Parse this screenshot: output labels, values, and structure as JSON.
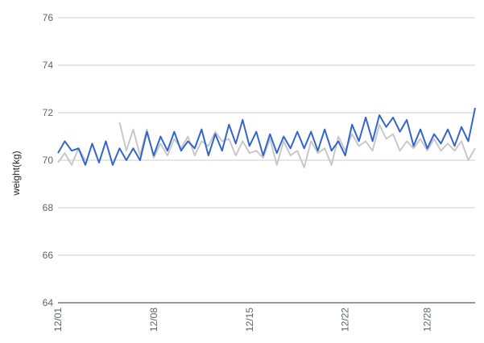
{
  "chart_data": {
    "type": "line",
    "ylabel": "weight(kg)",
    "xlabel": "",
    "ylim": [
      64,
      76
    ],
    "yticks": [
      64,
      66,
      68,
      70,
      72,
      74,
      76
    ],
    "xlim": [
      0,
      30.5
    ],
    "xticks": [
      {
        "x": 0,
        "label": "12/01"
      },
      {
        "x": 7,
        "label": "12/08"
      },
      {
        "x": 14,
        "label": "12/15"
      },
      {
        "x": 21,
        "label": "12/22"
      },
      {
        "x": 27,
        "label": "12/28"
      }
    ],
    "grid": true,
    "legend": "none",
    "series": [
      {
        "color": "#3366cc",
        "x": [
          0,
          0.5,
          1,
          1.5,
          2,
          2.5,
          3,
          3.5,
          4,
          4.5,
          5,
          5.5,
          6,
          6.5,
          7,
          7.5,
          8,
          8.5,
          9,
          9.5,
          10,
          10.5,
          11,
          11.5,
          12,
          12.5,
          13,
          13.5,
          14,
          14.5,
          15,
          15.5,
          16,
          16.5,
          17,
          17.5,
          18,
          18.5,
          19,
          19.5,
          20,
          20.5,
          21,
          21.5,
          22,
          22.5,
          23,
          23.5,
          24,
          24.5,
          25,
          25.5,
          26,
          26.5,
          27,
          27.5,
          28,
          28.5,
          29,
          29.5,
          30,
          30.5
        ],
        "values": [
          70.3,
          70.8,
          70.4,
          70.5,
          69.8,
          70.7,
          69.9,
          70.8,
          69.8,
          70.5,
          70.0,
          70.5,
          70.0,
          71.2,
          70.2,
          71.0,
          70.4,
          71.2,
          70.4,
          70.8,
          70.5,
          71.3,
          70.2,
          71.1,
          70.4,
          71.5,
          70.7,
          71.7,
          70.6,
          71.2,
          70.2,
          71.1,
          70.3,
          71.0,
          70.5,
          71.2,
          70.5,
          71.2,
          70.4,
          71.3,
          70.4,
          70.8,
          70.2,
          71.5,
          70.8,
          71.8,
          70.8,
          71.9,
          71.4,
          71.8,
          71.2,
          71.7,
          70.6,
          71.3,
          70.5,
          71.1,
          70.7,
          71.3,
          70.6,
          71.4,
          70.8,
          72.2
        ]
      },
      {
        "color": "#c8c8c8",
        "x": [
          0,
          0.5,
          1,
          1.5,
          2,
          2.5,
          3,
          3.5,
          4,
          4.5,
          5,
          5.5,
          6,
          6.5,
          7,
          7.5,
          8,
          8.5,
          9,
          9.5,
          10,
          10.5,
          11,
          11.5,
          12,
          12.5,
          13,
          13.5,
          14,
          14.5,
          15,
          15.5,
          16,
          16.5,
          17,
          17.5,
          18,
          18.5,
          19,
          19.5,
          20,
          20.5,
          21,
          21.5,
          22,
          22.5,
          23,
          23.5,
          24,
          24.5,
          25,
          25.5,
          26,
          26.5,
          27,
          27.5,
          28,
          28.5,
          29,
          29.5,
          30,
          30.5
        ],
        "values": [
          69.9,
          70.3,
          69.8,
          70.5,
          70.0,
          null,
          null,
          null,
          null,
          71.6,
          70.4,
          71.3,
          70.2,
          71.3,
          70.1,
          70.7,
          70.2,
          70.9,
          70.5,
          71.0,
          70.2,
          70.8,
          70.6,
          71.2,
          70.8,
          70.9,
          70.2,
          70.8,
          70.3,
          70.4,
          70.1,
          70.9,
          69.8,
          70.8,
          70.2,
          70.4,
          69.7,
          70.8,
          70.3,
          70.5,
          69.8,
          71.0,
          70.4,
          71.1,
          70.6,
          70.8,
          70.4,
          71.5,
          70.9,
          71.1,
          70.4,
          70.8,
          70.5,
          70.9,
          70.4,
          70.9,
          70.4,
          70.7,
          70.4,
          70.8,
          70.0,
          70.5
        ]
      }
    ]
  }
}
